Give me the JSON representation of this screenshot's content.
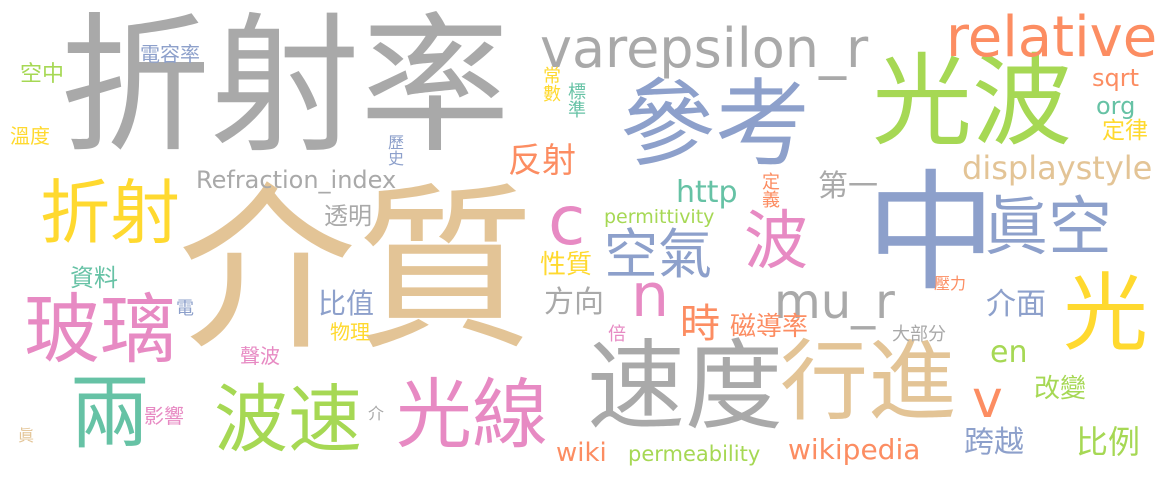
{
  "words": {
    "w1": "折射率",
    "w2": "介質",
    "w3": "參考",
    "w4": "光波",
    "w5": "中",
    "w6": "速度",
    "w7": "行進",
    "w8": "光",
    "w9": "折射",
    "w10": "玻璃",
    "w11": "波速",
    "w12": "光線",
    "w13": "varepsilon_r",
    "w14": "relative",
    "w15": "眞空",
    "w16": "波",
    "w17": "c",
    "w18": "n",
    "w19": "mu_r",
    "w20": "兩",
    "w21": "空氣",
    "w22": "v",
    "w23": "Refraction_index",
    "w24": "displaystyle",
    "w25": "反射",
    "w26": "http",
    "w27": "第一",
    "w28": "性質",
    "w29": "時",
    "w30": "方向",
    "w31": "比值",
    "w32": "磁導率",
    "w33": "介面",
    "w34": "en",
    "w35": "改變",
    "w36": "跨越",
    "w37": "比例",
    "w38": "wikipedia",
    "w39": "wiki",
    "w40": "permeability",
    "w41": "permittivity",
    "w42": "sqrt",
    "w43": "org",
    "w44": "定律",
    "w45": "電容率",
    "w46": "空中",
    "w47": "溫度",
    "w48": "常數",
    "w49": "標準",
    "w50": "歷史",
    "w51": "定義",
    "w52": "透明",
    "w53": "資料",
    "w54": "電",
    "w55": "物理",
    "w56": "聲波",
    "w57": "影響",
    "w58": "倍",
    "w59": "大部分",
    "w60": "壓力",
    "w61": "介",
    "w62": "眞"
  }
}
